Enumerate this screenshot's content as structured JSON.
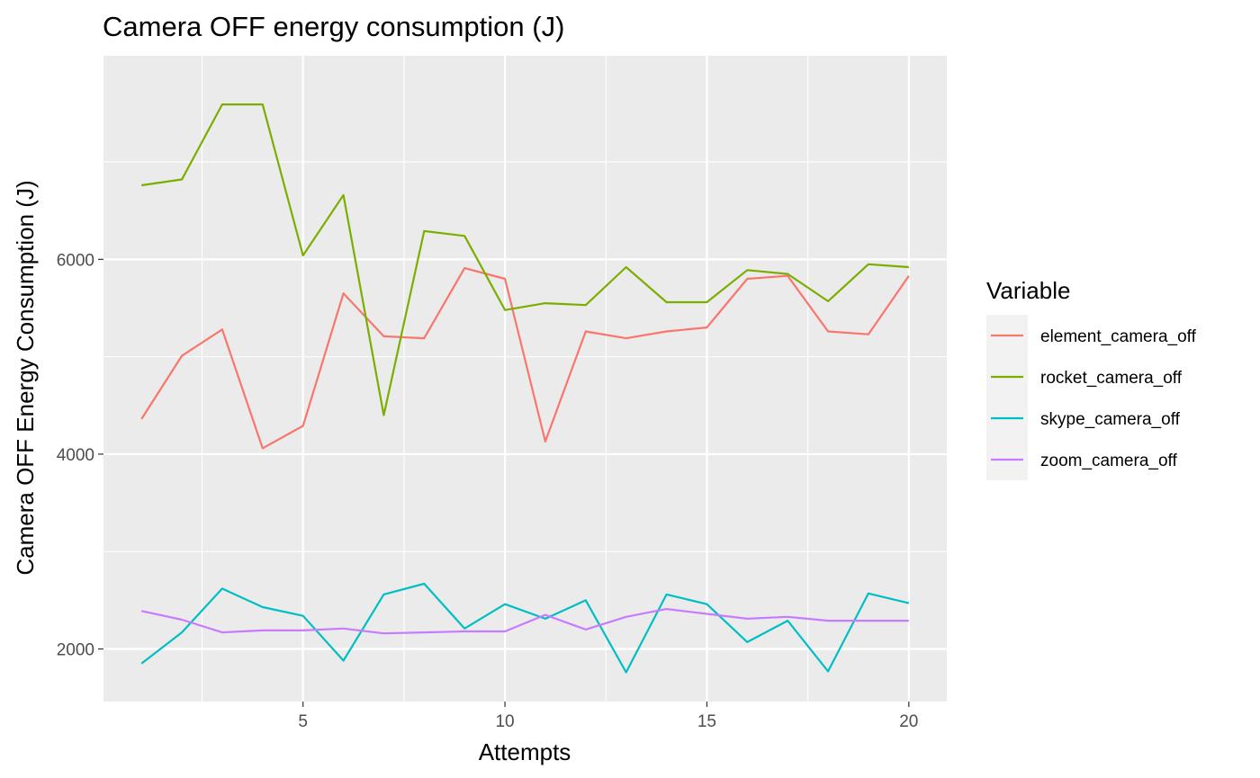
{
  "chart_data": {
    "type": "line",
    "title": "Camera OFF energy consumption (J)",
    "xlabel": "Attempts",
    "ylabel": "Camera OFF Energy Consumption (J)",
    "xlim": [
      0.06,
      20.94
    ],
    "ylim": [
      1460,
      8090
    ],
    "x_ticks": [
      5,
      10,
      15,
      20
    ],
    "x_minor_ticks": [
      2.5,
      7.5,
      12.5,
      17.5
    ],
    "y_ticks": [
      2000,
      4000,
      6000
    ],
    "y_minor_ticks": [
      3000,
      5000,
      7000
    ],
    "grid": true,
    "legend": {
      "title": "Variable",
      "placement": "right"
    },
    "x": [
      1,
      2,
      3,
      4,
      5,
      6,
      7,
      8,
      9,
      10,
      11,
      12,
      13,
      14,
      15,
      16,
      17,
      18,
      19,
      20
    ],
    "series": [
      {
        "name": "element_camera_off",
        "color": "#F8766D",
        "values": [
          4360,
          5010,
          5280,
          4060,
          4290,
          5650,
          5210,
          5190,
          5910,
          5800,
          4130,
          5260,
          5190,
          5260,
          5300,
          5800,
          5830,
          5260,
          5230,
          5830
        ]
      },
      {
        "name": "rocket_camera_off",
        "color": "#7CAE00",
        "values": [
          6760,
          6820,
          7590,
          7590,
          6040,
          6660,
          4400,
          6290,
          6240,
          5480,
          5550,
          5530,
          5920,
          5560,
          5560,
          5890,
          5850,
          5570,
          5950,
          5920
        ]
      },
      {
        "name": "skype_camera_off",
        "color": "#00BFC4",
        "values": [
          1850,
          2170,
          2620,
          2430,
          2340,
          1880,
          2560,
          2670,
          2210,
          2460,
          2310,
          2500,
          1760,
          2560,
          2460,
          2070,
          2290,
          1770,
          2570,
          2470
        ]
      },
      {
        "name": "zoom_camera_off",
        "color": "#C77CFF",
        "values": [
          2390,
          2300,
          2170,
          2190,
          2190,
          2210,
          2160,
          2170,
          2180,
          2180,
          2350,
          2200,
          2330,
          2410,
          2360,
          2310,
          2330,
          2290,
          2290,
          2290
        ]
      }
    ]
  }
}
